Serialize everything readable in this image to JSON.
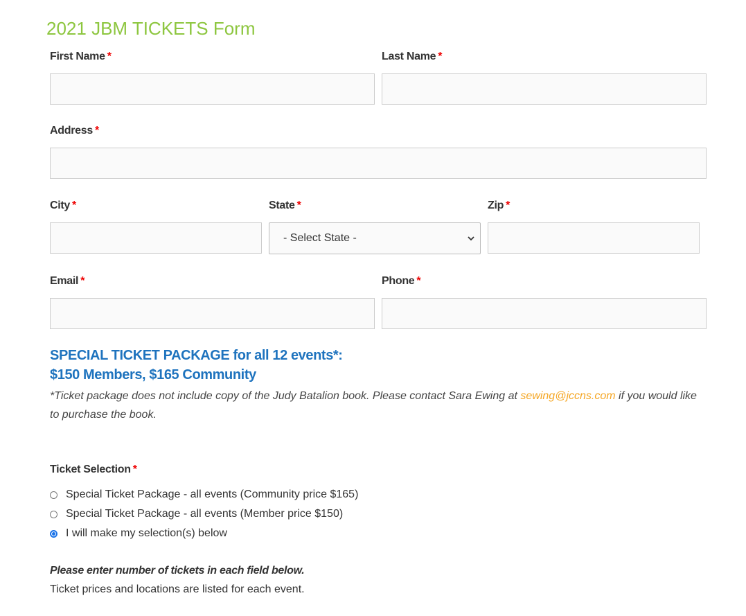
{
  "form": {
    "title": "2021 JBM TICKETS Form",
    "required_mark": "*",
    "fields": {
      "first_name": {
        "label": "First Name",
        "value": ""
      },
      "last_name": {
        "label": "Last Name",
        "value": ""
      },
      "address": {
        "label": "Address",
        "value": ""
      },
      "city": {
        "label": "City",
        "value": ""
      },
      "state": {
        "label": "State",
        "selected": "- Select State -"
      },
      "zip": {
        "label": "Zip",
        "value": ""
      },
      "email": {
        "label": "Email",
        "value": ""
      },
      "phone": {
        "label": "Phone",
        "value": ""
      }
    },
    "package": {
      "line1": "SPECIAL TICKET PACKAGE for all 12 events*:",
      "line2": "$150 Members, $165 Community",
      "note_before": "*Ticket package does not include copy of the Judy Batalion book. Please contact Sara Ewing at ",
      "note_link": "sewing@jccns.com",
      "note_after": " if you would like to purchase the book."
    },
    "ticket_selection": {
      "label": "Ticket Selection",
      "options": [
        {
          "label": "Special Ticket Package - all events (Community price $165)",
          "checked": false
        },
        {
          "label": "Special Ticket Package - all events (Member price $150)",
          "checked": false
        },
        {
          "label": "I will make my selection(s) below",
          "checked": true
        }
      ]
    },
    "instructions": {
      "bold": "Please enter number of tickets in each field below.",
      "text": "Ticket prices and locations are listed for each event."
    }
  },
  "colors": {
    "title": "#8dc63f",
    "package": "#1e73be",
    "link": "#f5a623",
    "required": "#ee0000"
  }
}
